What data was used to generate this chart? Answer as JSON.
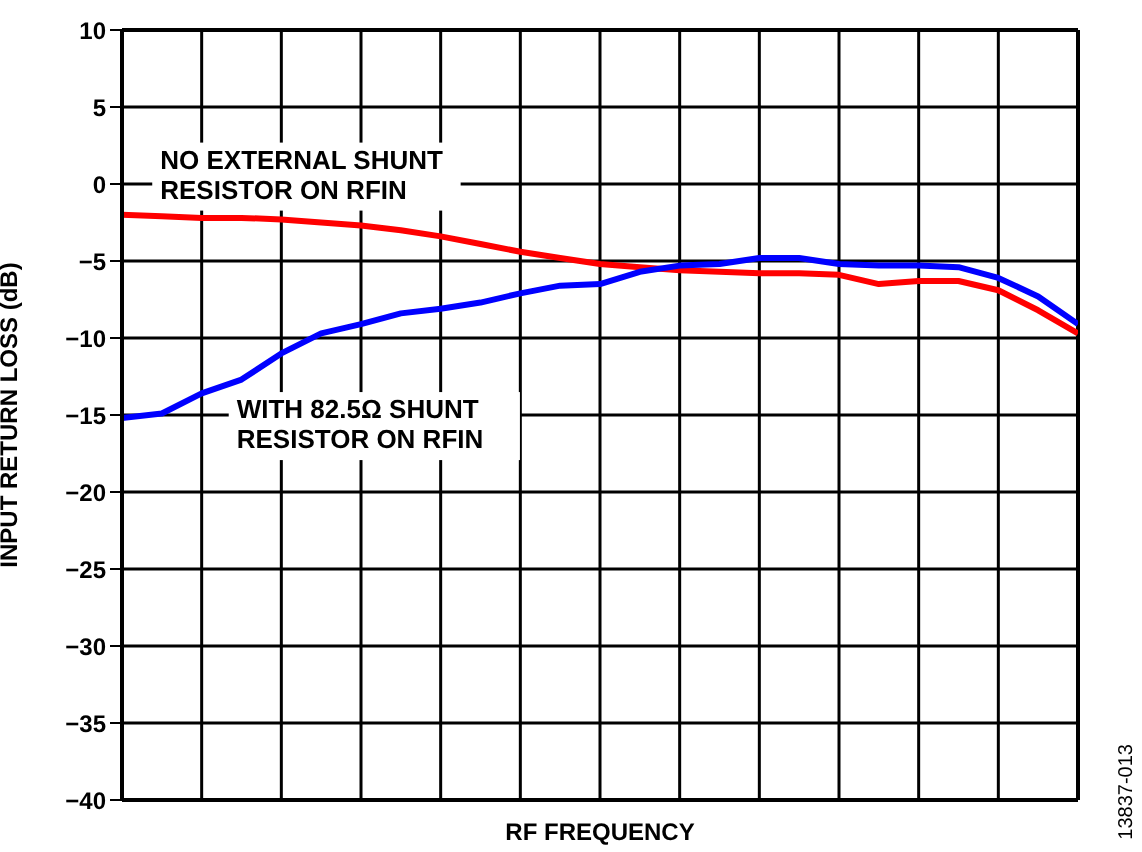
{
  "chart_data": {
    "type": "line",
    "xlabel": "RF FREQUENCY",
    "ylabel": "INPUT RETURN LOSS (dB)",
    "categories": [
      null,
      null,
      null,
      null,
      null,
      null,
      null,
      null,
      null,
      null,
      null,
      null,
      null,
      null,
      null,
      null,
      null,
      null,
      null,
      null,
      null,
      null,
      null,
      null,
      null
    ],
    "series": [
      {
        "name": "NO EXTERNAL SHUNT RESISTOR ON RFIN",
        "color": "#ff0000",
        "values": [
          -2.0,
          -2.1,
          -2.2,
          -2.2,
          -2.3,
          -2.5,
          -2.7,
          -3.0,
          -3.4,
          -3.9,
          -4.4,
          -4.8,
          -5.2,
          -5.4,
          -5.6,
          -5.7,
          -5.8,
          -5.8,
          -5.9,
          -6.5,
          -6.3,
          -6.3,
          -6.9,
          -8.2,
          -9.7
        ]
      },
      {
        "name": "WITH 82.5Ω SHUNT RESISTOR ON RFIN",
        "color": "#0000ff",
        "values": [
          -15.2,
          -14.9,
          -13.6,
          -12.7,
          -11.0,
          -9.7,
          -9.1,
          -8.4,
          -8.1,
          -7.7,
          -7.1,
          -6.6,
          -6.5,
          -5.7,
          -5.3,
          -5.2,
          -4.8,
          -4.8,
          -5.2,
          -5.3,
          -5.3,
          -5.4,
          -6.1,
          -7.3,
          -9.1
        ]
      }
    ],
    "ylim": [
      -40,
      10
    ],
    "yticks": [
      -40,
      -35,
      -30,
      -25,
      -20,
      -15,
      -10,
      -5,
      0,
      5,
      10
    ],
    "grid": true,
    "marker": "none",
    "line_style": "solid",
    "annotations": [
      "13837-013"
    ]
  }
}
